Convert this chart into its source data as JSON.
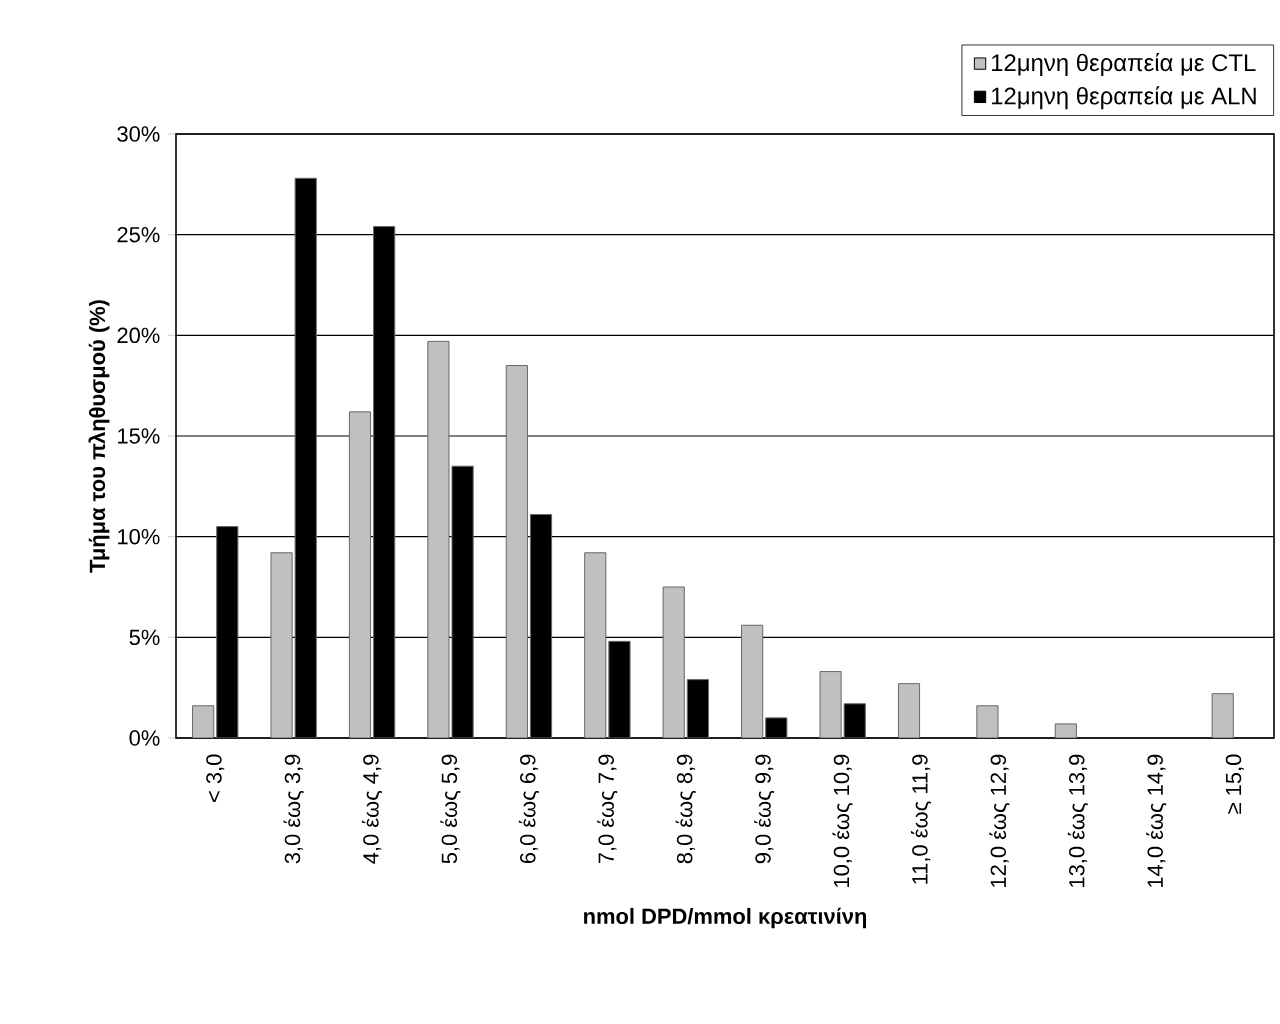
{
  "chart_data": {
    "type": "bar",
    "xlabel": "nmol DPD/mmol κρεατινίνη",
    "ylabel": "Τμήμα του πληθυσμού (%)",
    "categories": [
      "< 3,0",
      "3,0 έως 3,9",
      "4,0 έως 4,9",
      "5,0 έως 5,9",
      "6,0 έως 6,9",
      "7,0 έως 7,9",
      "8,0 έως 8,9",
      "9,0 έως 9,9",
      "10,0 έως 10,9",
      "11,0 έως 11,9",
      "12,0 έως 12,9",
      "13,0 έως 13,9",
      "14,0 έως 14,9",
      "≥ 15,0"
    ],
    "series": [
      {
        "name": "12μηνη θεραπεία με CTL",
        "color": "#c0c0c0",
        "values": [
          1.6,
          9.2,
          16.2,
          19.7,
          18.5,
          9.2,
          7.5,
          5.6,
          3.3,
          2.7,
          1.6,
          0.7,
          null,
          2.2
        ]
      },
      {
        "name": "12μηνη θεραπεία με ALN",
        "color": "#000000",
        "values": [
          10.5,
          27.8,
          25.4,
          13.5,
          11.1,
          4.8,
          2.9,
          1.0,
          1.7,
          null,
          null,
          null,
          null,
          null
        ]
      }
    ],
    "ylim": [
      0,
      30
    ],
    "yticks": [
      {
        "value": 0,
        "label": "0%"
      },
      {
        "value": 5,
        "label": "5%"
      },
      {
        "value": 10,
        "label": "10%"
      },
      {
        "value": 15,
        "label": "15%"
      },
      {
        "value": 20,
        "label": "20%"
      },
      {
        "value": 25,
        "label": "25%"
      },
      {
        "value": 30,
        "label": "30%"
      }
    ],
    "grid": "y",
    "legend": "top right"
  }
}
